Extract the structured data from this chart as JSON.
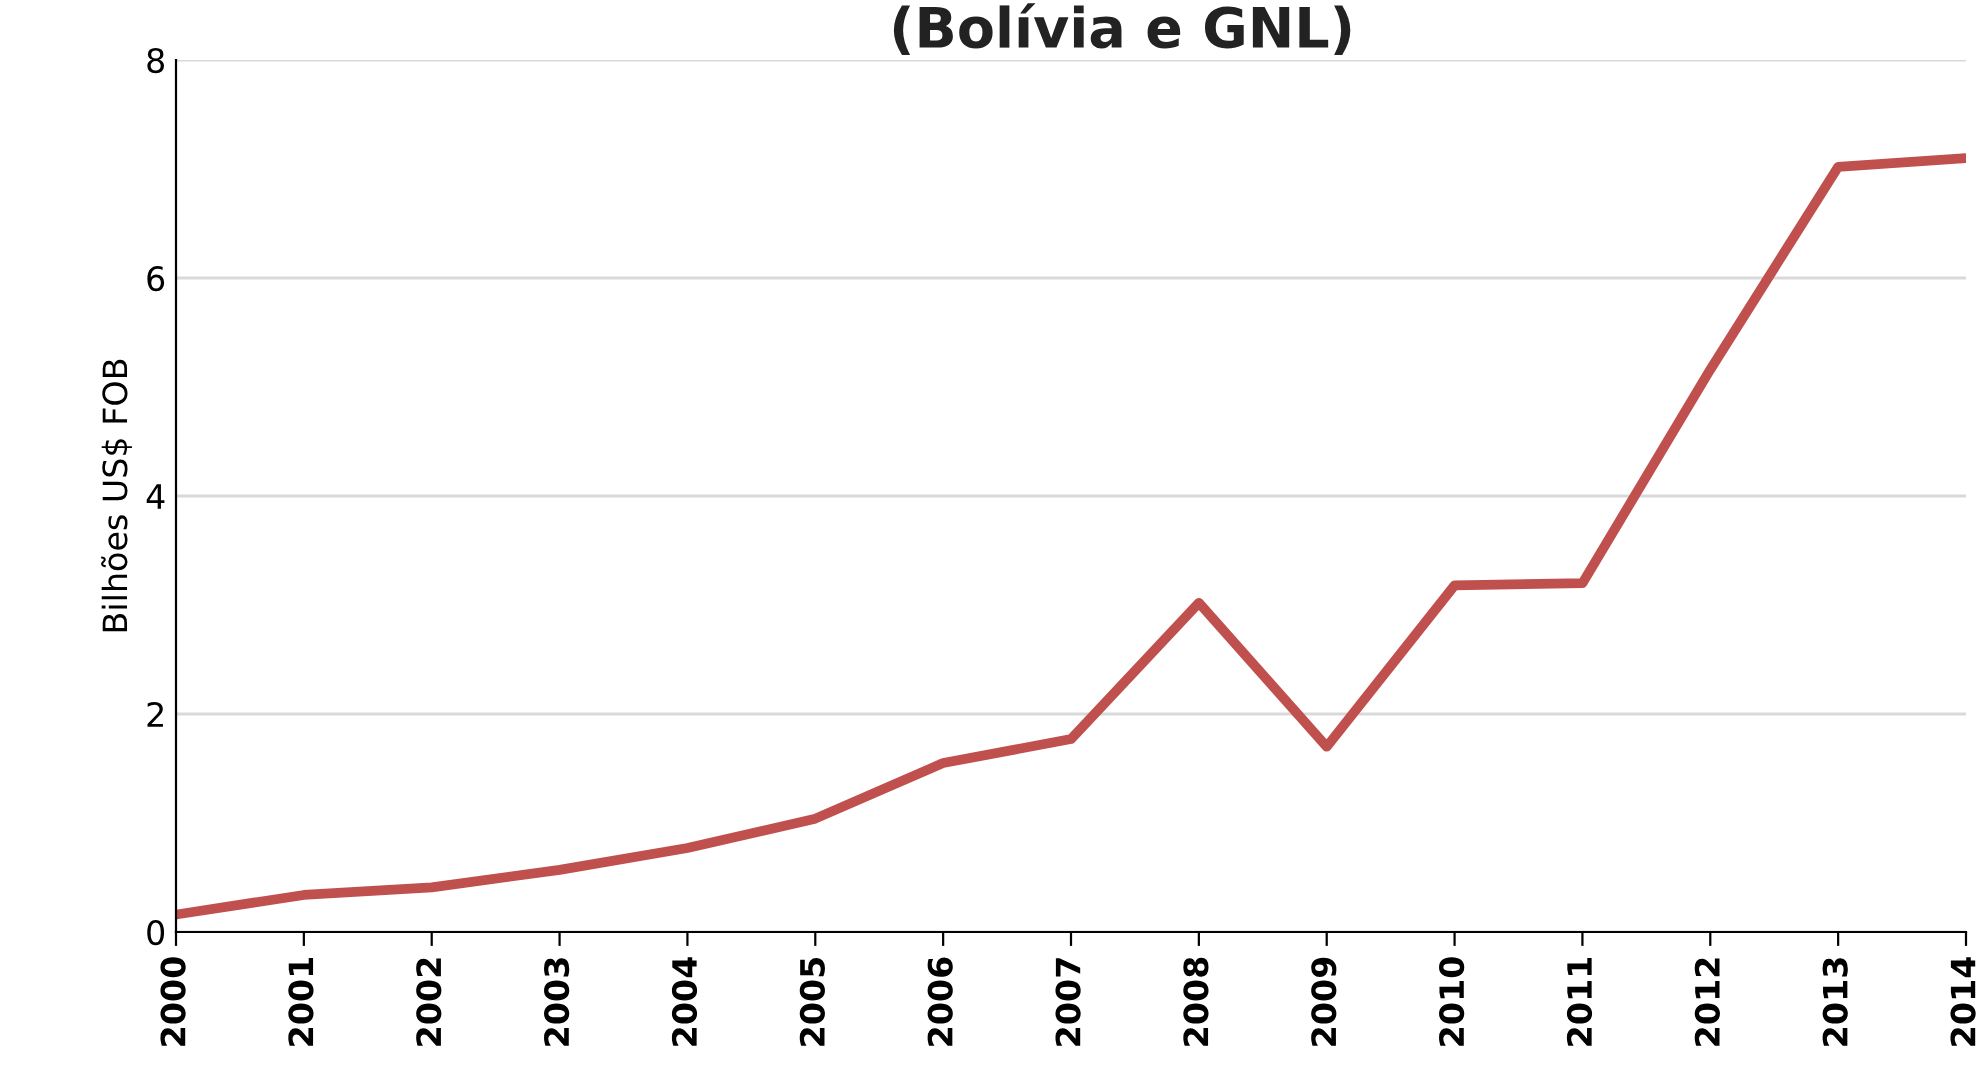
{
  "chart_data": {
    "type": "line",
    "title": "(Bolívia e GNL)",
    "ylabel": "Bilhões US$ FOB",
    "x": [
      2000,
      2001,
      2002,
      2003,
      2004,
      2005,
      2006,
      2007,
      2008,
      2009,
      2010,
      2011,
      2012,
      2013,
      2014
    ],
    "series": [
      {
        "color": "#c0504d",
        "values": [
          0.16,
          0.34,
          0.41,
          0.57,
          0.77,
          1.04,
          1.55,
          1.77,
          3.02,
          1.7,
          3.18,
          3.2,
          5.16,
          7.02,
          7.1
        ]
      }
    ],
    "xlim": [
      2000,
      2014
    ],
    "xticks": [
      2000,
      2001,
      2002,
      2003,
      2004,
      2005,
      2006,
      2007,
      2008,
      2009,
      2010,
      2011,
      2012,
      2013,
      2014
    ],
    "ylim": [
      0,
      8
    ],
    "yticks": [
      0,
      2,
      4,
      6,
      8
    ],
    "grid": "y",
    "marker": "none",
    "line_style": "solid",
    "legend": false
  }
}
